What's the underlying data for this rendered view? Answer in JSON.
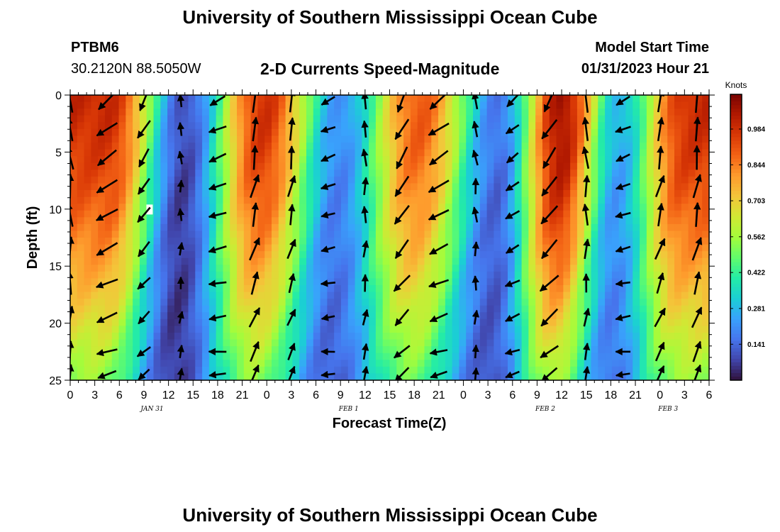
{
  "page": {
    "title": "University of Southern Mississippi Ocean Cube",
    "station_id": "PTBM6",
    "coords": "30.2120N  88.5050W",
    "product": "2-D Currents Speed-Magnitude",
    "model_start_label": "Model Start Time",
    "model_start_value": "01/31/2023 Hour 21",
    "footer_title": "University of Southern Mississippi Ocean Cube"
  },
  "chart_data": {
    "type": "heatmap",
    "xlabel": "Forecast Time(Z)",
    "ylabel": "Depth (ft)",
    "x_range_hours": [
      0,
      78
    ],
    "ylim": [
      0,
      25
    ],
    "y_ticks": [
      0,
      5,
      10,
      15,
      20,
      25
    ],
    "x_tick_labels": [
      "0",
      "3",
      "6",
      "9",
      "12",
      "15",
      "18",
      "21",
      "0",
      "3",
      "6",
      "9",
      "12",
      "15",
      "18",
      "21",
      "0",
      "3",
      "6",
      "9",
      "12",
      "15",
      "18",
      "21",
      "0",
      "3",
      "6"
    ],
    "date_labels": [
      {
        "text": "JAN 31",
        "hour": 10
      },
      {
        "text": "FEB 1",
        "hour": 34
      },
      {
        "text": "FEB 2",
        "hour": 58
      },
      {
        "text": "FEB 3",
        "hour": 73
      }
    ],
    "colorbar": {
      "title": "Knots",
      "range": [
        0.0,
        1.12
      ],
      "ticks": [
        "0.141",
        "0.281",
        "0.422",
        "0.562",
        "0.703",
        "0.844",
        "0.984"
      ]
    },
    "speed_peaks_knots": [
      {
        "hour": 4.5,
        "speed": 1.0
      },
      {
        "hour": 23.0,
        "speed": 1.0
      },
      {
        "hour": 42.0,
        "speed": 0.92
      },
      {
        "hour": 59.5,
        "speed": 1.1
      },
      {
        "hour": 74.5,
        "speed": 1.0
      }
    ],
    "speed_troughs_knots": [
      {
        "hour": 13.5,
        "speed": 0.08
      },
      {
        "hour": 32.5,
        "speed": 0.2
      },
      {
        "hour": 52.0,
        "speed": 0.15
      },
      {
        "hour": 66.5,
        "speed": 0.25
      }
    ],
    "vector_columns_hours": [
      0,
      4.5,
      9,
      13.5,
      18,
      22.5,
      27,
      31.5,
      36,
      40.5,
      45,
      49.5,
      54,
      58.5,
      63,
      67.5,
      72,
      76.5
    ],
    "vector_rows_depth_ft": [
      0.5,
      3,
      5.5,
      8,
      10.5,
      13.5,
      16.5,
      19.5,
      22.5,
      24.5
    ],
    "colors": {
      "colormap": [
        "#30123b",
        "#4145ab",
        "#4675ed",
        "#39a2fc",
        "#1bcfd4",
        "#24eca6",
        "#61fc6c",
        "#a4fc3b",
        "#d1e834",
        "#f3c63a",
        "#fe9b2d",
        "#f36315",
        "#d93806",
        "#b11901",
        "#7a0402"
      ],
      "arrow": "#000000",
      "marker": "#ffffff"
    }
  }
}
